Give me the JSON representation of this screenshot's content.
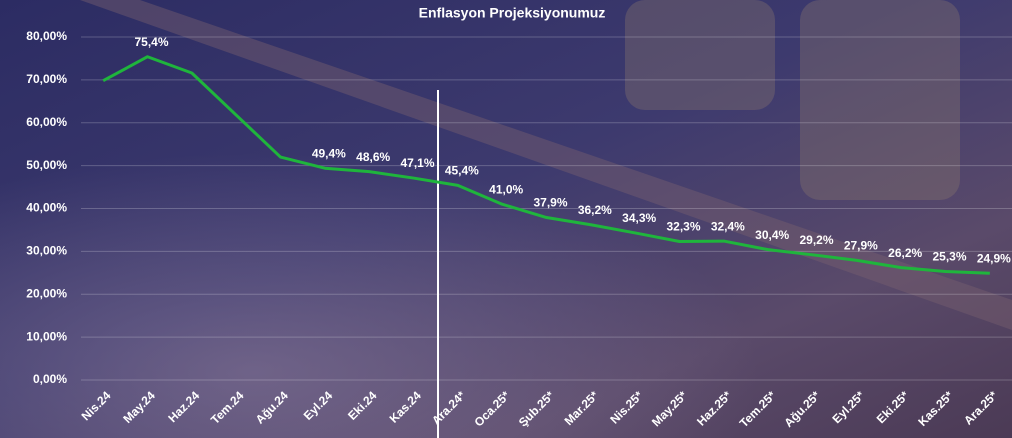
{
  "chart_data": {
    "type": "line",
    "title": "Enflasyon Projeksiyonumuz",
    "categories": [
      "Nis.24",
      "May.24",
      "Haz.24",
      "Tem.24",
      "Ağu.24",
      "Eyl.24",
      "Eki.24",
      "Kas.24",
      "Ara.24*",
      "Oca.25*",
      "Şub.25*",
      "Mar.25*",
      "Nis.25*",
      "May.25*",
      "Haz.25*",
      "Tem.25*",
      "Ağu.25*",
      "Eyl.25*",
      "Eki.25*",
      "Kas.25*",
      "Ara.25*"
    ],
    "series": [
      {
        "color": "#1fb53c",
        "values": [
          69.8,
          75.4,
          71.6,
          61.8,
          52.0,
          49.4,
          48.6,
          47.1,
          45.4,
          41.0,
          37.9,
          36.2,
          34.3,
          32.3,
          32.4,
          30.4,
          29.2,
          27.9,
          26.2,
          25.3,
          24.9
        ],
        "value_labels": [
          null,
          "75,4%",
          null,
          null,
          null,
          "49,4%",
          "48,6%",
          "47,1%",
          "45,4%",
          "41,0%",
          "37,9%",
          "36,2%",
          "34,3%",
          "32,3%",
          "32,4%",
          "30,4%",
          "29,2%",
          "27,9%",
          "26,2%",
          "25,3%",
          "24,9%"
        ]
      }
    ],
    "ylim": [
      0,
      80
    ],
    "yticks": [
      {
        "value": 0,
        "label": "0,00%"
      },
      {
        "value": 10,
        "label": "10,00%"
      },
      {
        "value": 20,
        "label": "20,00%"
      },
      {
        "value": 30,
        "label": "30,00%"
      },
      {
        "value": 40,
        "label": "40,00%"
      },
      {
        "value": 50,
        "label": "50,00%"
      },
      {
        "value": 60,
        "label": "60,00%"
      },
      {
        "value": 70,
        "label": "70,00%"
      },
      {
        "value": 80,
        "label": "80,00%"
      }
    ],
    "grid": true
  }
}
